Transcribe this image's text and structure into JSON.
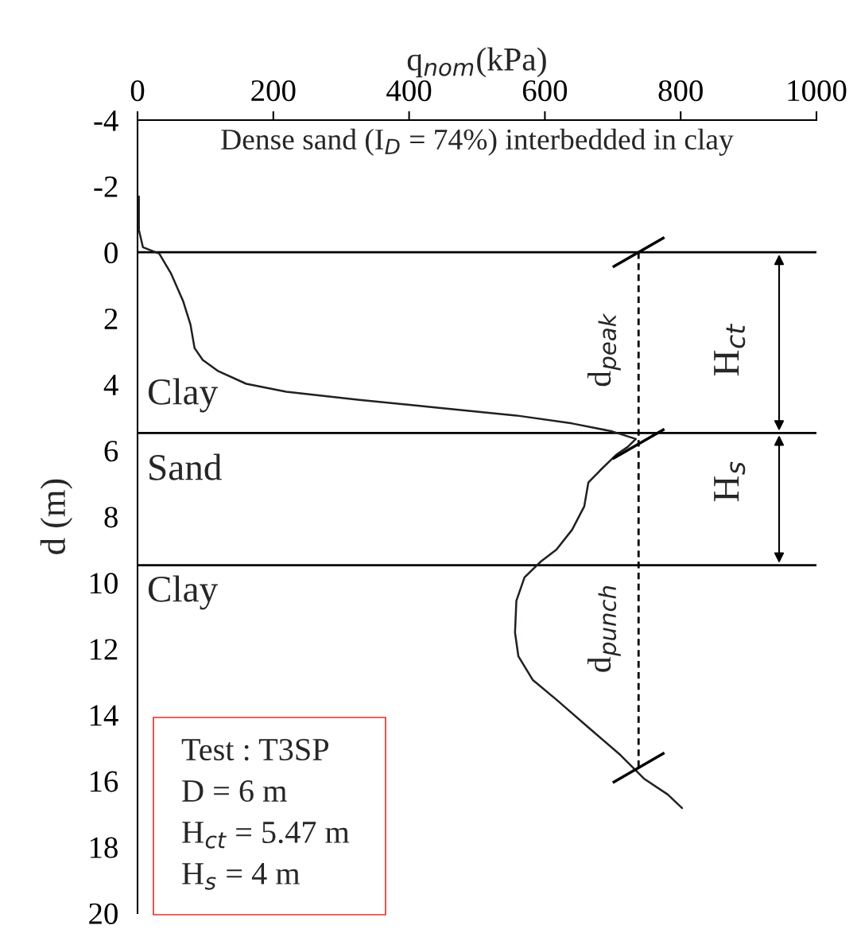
{
  "chart_data": {
    "type": "line",
    "xlabel": "q$_{nom}$(kPa)",
    "ylabel": "d (m)",
    "xlim": [
      0,
      1000
    ],
    "xticks": [
      0,
      200,
      400,
      600,
      800,
      1000
    ],
    "ylim": [
      20,
      -4
    ],
    "yticks": [
      -4,
      -2,
      0,
      2,
      4,
      6,
      8,
      10,
      12,
      14,
      16,
      18,
      20
    ],
    "grid": false,
    "legend": false,
    "series": [
      {
        "color": "#231f20",
        "line_style": "solid",
        "x": [
          2,
          2,
          8,
          32,
          49,
          67,
          78,
          84,
          96,
          119,
          160,
          219,
          324,
          441,
          558,
          640,
          699,
          734,
          722,
          705,
          681,
          664,
          658,
          640,
          617,
          594,
          570,
          558,
          556,
          561,
          582,
          617,
          664,
          711,
          746,
          781,
          802
        ],
        "values": [
          -1.69,
          -0.68,
          -0.15,
          0.04,
          0.63,
          1.47,
          2.19,
          2.9,
          3.26,
          3.6,
          3.98,
          4.22,
          4.46,
          4.7,
          4.94,
          5.18,
          5.42,
          5.65,
          5.89,
          6.13,
          6.61,
          6.97,
          7.69,
          8.4,
          9.0,
          9.36,
          9.84,
          10.55,
          11.51,
          12.23,
          12.94,
          13.54,
          14.38,
          15.21,
          15.93,
          16.41,
          16.82
        ]
      },
      {
        "color": "#000000",
        "line_style": "dashed",
        "x": [
          738,
          738,
          738
        ],
        "values": [
          0,
          5.8,
          15.6
        ]
      }
    ],
    "ref_lines": [
      {
        "axis": "y",
        "value": 0,
        "color": "#000000"
      },
      {
        "axis": "y",
        "value": 5.47,
        "color": "#000000"
      },
      {
        "axis": "y",
        "value": 9.47,
        "color": "#000000"
      }
    ],
    "annotations": [
      "Dense sand (I$_{D}$ = 74%) interbedded in clay",
      "Clay",
      "Sand",
      "Clay",
      "d$_{peak}$",
      "d$_{punch}$",
      "H$_{ct}$",
      "H$_{s}$",
      "Test : T3SP",
      "D = 6 m",
      "H$_{ct}$ = 5.47 m",
      "H$_{s}$ = 4 m"
    ]
  }
}
